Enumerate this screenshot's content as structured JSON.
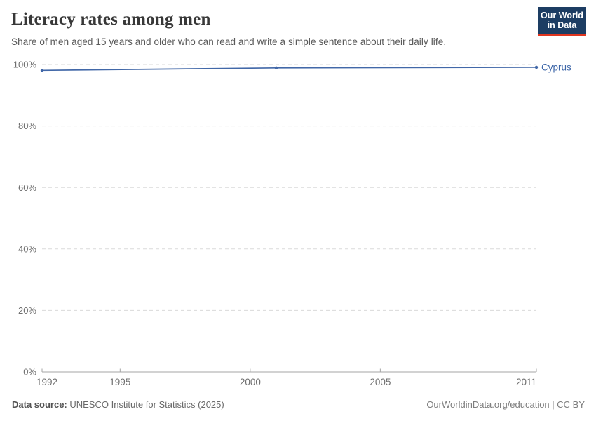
{
  "header": {
    "title": "Literacy rates among men",
    "subtitle": "Share of men aged 15 years and older who can read and write a simple sentence about their daily life.",
    "logo": {
      "line1": "Our World",
      "line2": "in Data"
    }
  },
  "chart_data": {
    "type": "line",
    "title": "Literacy rates among men",
    "xlabel": "",
    "ylabel": "",
    "xlim": [
      1992,
      2011
    ],
    "ylim": [
      0,
      100
    ],
    "x_ticks": [
      1992,
      1995,
      2000,
      2005,
      2011
    ],
    "y_ticks": [
      0,
      20,
      40,
      60,
      80,
      100
    ],
    "y_tick_suffix": "%",
    "grid": "horizontal-dashed",
    "legend_position": "end-of-line-label",
    "series": [
      {
        "name": "Cyprus",
        "x": [
          1992,
          2001,
          2011
        ],
        "values": [
          98.1,
          98.9,
          99.1
        ],
        "markers": true
      }
    ]
  },
  "footer": {
    "source_label": "Data source:",
    "source_value": " UNESCO Institute for Statistics (2025)",
    "attribution": "OurWorldinData.org/education | CC BY"
  },
  "colors": {
    "series_blue": "#4268a8",
    "end_label_blue": "#3d66a8",
    "logo_navy": "#1d3d63",
    "logo_red": "#e0351f",
    "grid_gray": "#dadada",
    "axis_gray": "#a5a5a5",
    "tick_label_gray": "#6e6e6e",
    "title_color": "#383838",
    "subtitle_color": "#595959"
  }
}
